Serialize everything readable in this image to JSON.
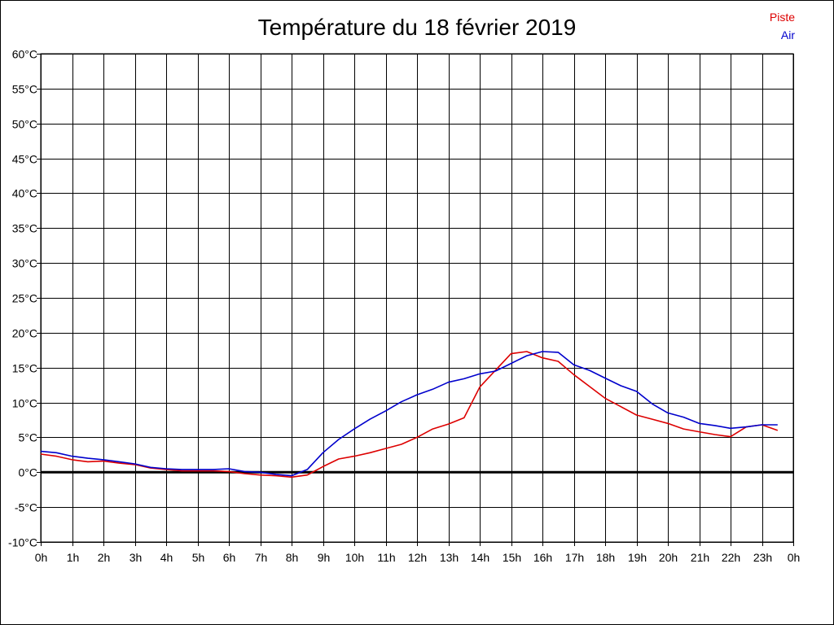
{
  "chart_data": {
    "type": "line",
    "title": "Température du 18 février 2019",
    "xlabel": "",
    "ylabel": "",
    "grid": true,
    "legend_position": "top-right",
    "x_tick_labels": [
      "0h",
      "1h",
      "2h",
      "3h",
      "4h",
      "5h",
      "6h",
      "7h",
      "8h",
      "9h",
      "10h",
      "11h",
      "12h",
      "13h",
      "14h",
      "15h",
      "16h",
      "17h",
      "18h",
      "19h",
      "20h",
      "21h",
      "22h",
      "23h",
      "0h"
    ],
    "xlim": [
      0,
      24
    ],
    "y_tick_labels": [
      "60°C",
      "55°C",
      "50°C",
      "45°C",
      "40°C",
      "35°C",
      "30°C",
      "25°C",
      "20°C",
      "15°C",
      "10°C",
      "5°C",
      "0°C",
      "-5°C",
      "-10°C"
    ],
    "ylim": [
      -10,
      60
    ],
    "zero_line": 0,
    "series": [
      {
        "name": "Piste",
        "color": "#dd0000",
        "x": [
          0,
          0.5,
          1,
          1.5,
          2,
          2.5,
          3,
          3.5,
          4,
          4.5,
          5,
          5.5,
          6,
          6.5,
          7,
          7.5,
          8,
          8.5,
          9,
          9.5,
          10,
          10.5,
          11,
          11.5,
          12,
          12.5,
          13,
          13.5,
          14,
          14.5,
          15,
          15.5,
          16,
          16.5,
          17,
          17.5,
          18,
          18.5,
          19,
          19.5,
          20,
          20.5,
          21,
          21.5,
          22,
          22.5,
          23,
          23.5
        ],
        "y": [
          2.6,
          2.3,
          1.8,
          1.5,
          1.6,
          1.3,
          1.1,
          0.6,
          0.4,
          0.2,
          0.2,
          0.2,
          0.1,
          -0.2,
          -0.4,
          -0.5,
          -0.7,
          -0.4,
          0.8,
          1.9,
          2.3,
          2.8,
          3.4,
          4.0,
          5.0,
          6.2,
          6.9,
          7.8,
          12.2,
          14.6,
          17.0,
          17.3,
          16.4,
          15.9,
          14.0,
          12.3,
          10.6,
          9.4,
          8.2,
          7.6,
          7.0,
          6.2,
          5.8,
          5.4,
          5.1,
          6.5,
          6.8,
          6.0
        ]
      },
      {
        "name": "Air",
        "color": "#0000cc",
        "x": [
          0,
          0.5,
          1,
          1.5,
          2,
          2.5,
          3,
          3.5,
          4,
          4.5,
          5,
          5.5,
          6,
          6.5,
          7,
          7.5,
          8,
          8.5,
          9,
          9.5,
          10,
          10.5,
          11,
          11.5,
          12,
          12.5,
          13,
          13.5,
          14,
          14.5,
          15,
          15.5,
          16,
          16.5,
          17,
          17.5,
          18,
          18.5,
          19,
          19.5,
          20,
          20.5,
          21,
          21.5,
          22,
          22.5,
          23,
          23.5
        ],
        "y": [
          3.0,
          2.8,
          2.3,
          2.0,
          1.8,
          1.5,
          1.2,
          0.7,
          0.5,
          0.4,
          0.4,
          0.4,
          0.5,
          0.1,
          0.0,
          -0.3,
          -0.5,
          0.4,
          2.8,
          4.7,
          6.2,
          7.6,
          8.8,
          10.1,
          11.1,
          11.9,
          12.9,
          13.4,
          14.1,
          14.5,
          15.6,
          16.7,
          17.3,
          17.2,
          15.4,
          14.6,
          13.5,
          12.4,
          11.6,
          9.8,
          8.5,
          7.9,
          7.0,
          6.7,
          6.3,
          6.5,
          6.8,
          6.8
        ]
      }
    ]
  }
}
